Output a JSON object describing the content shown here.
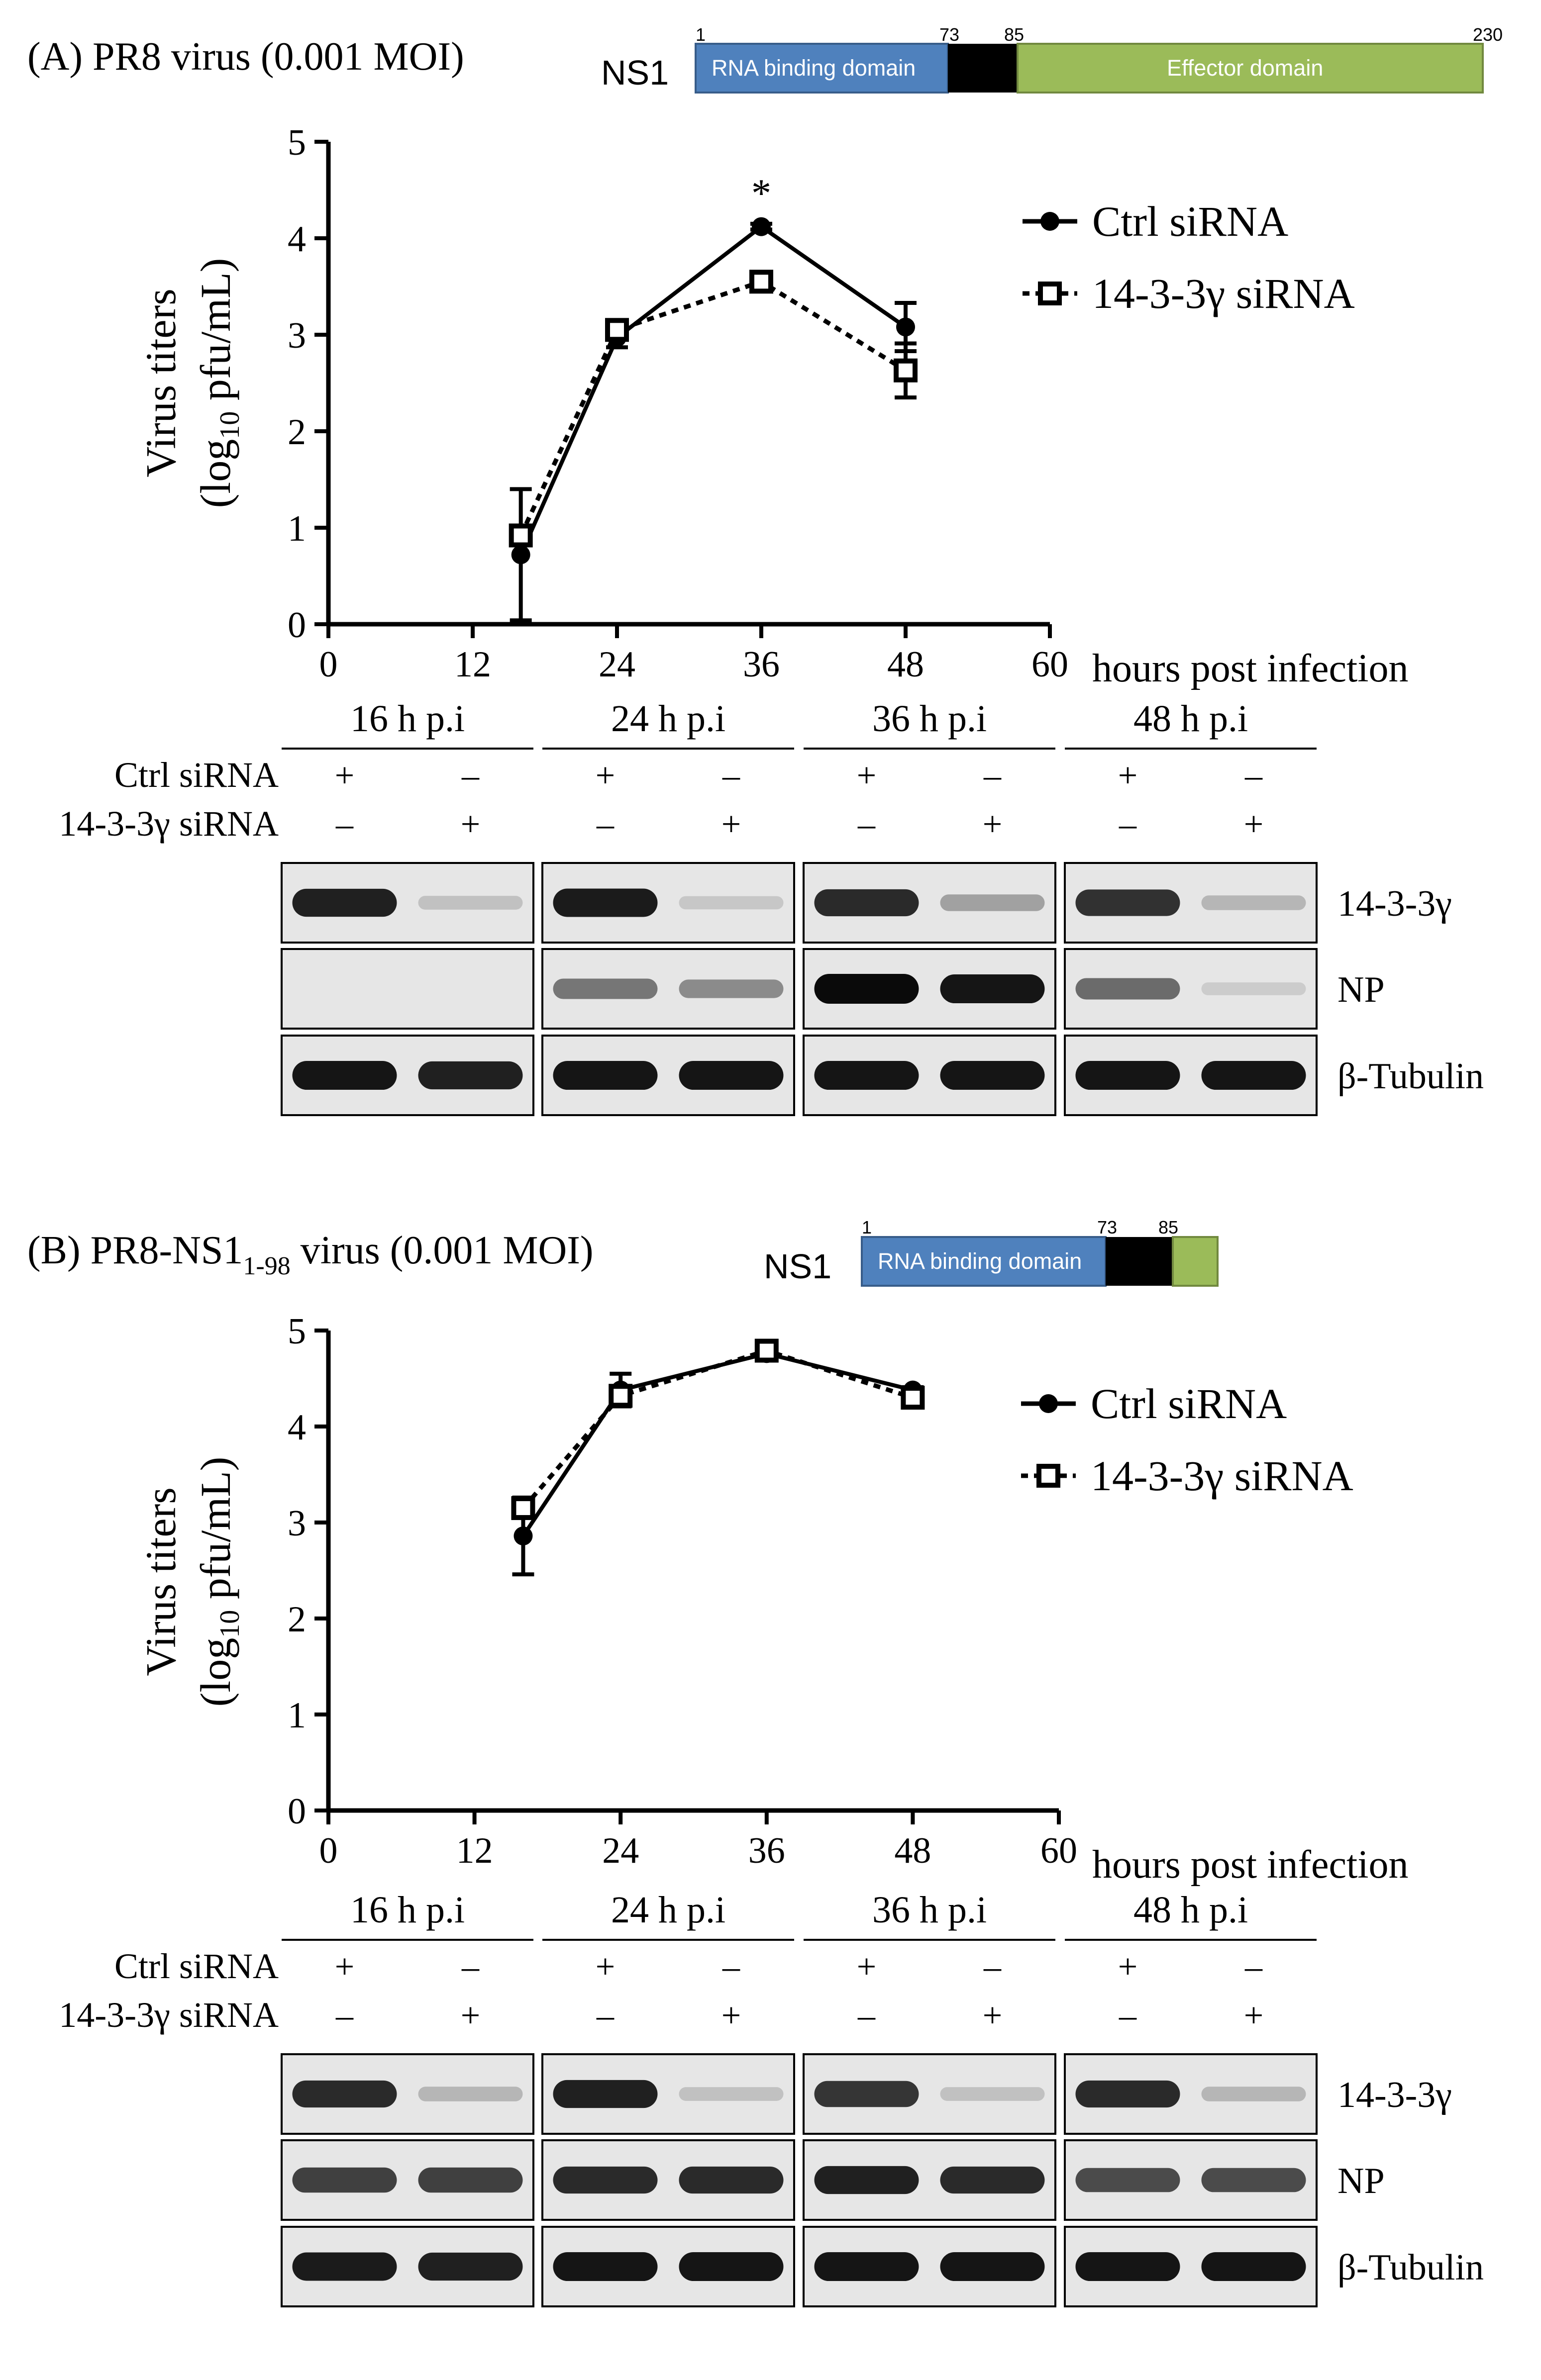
{
  "colors": {
    "rna_domain": "#4f81bd",
    "linker": "#000000",
    "effector_domain": "#9bbb59",
    "axis": "#000000"
  },
  "common": {
    "x_unit_label": "hours post infection",
    "y_label_line1": "Virus titers",
    "y_label_log": "(log",
    "y_label_sub": "10",
    "y_label_rest": " pfu/mL)",
    "lane_labels": [
      "16 h p.i",
      "24 h p.i",
      "36 h p.i",
      "48 h p.i"
    ],
    "sirna_rows": [
      "Ctrl siRNA",
      "14-3-3γ siRNA"
    ],
    "ctrl_marks": [
      "+",
      "–",
      "+",
      "–",
      "+",
      "–",
      "+",
      "–"
    ],
    "kd_marks": [
      "–",
      "+",
      "–",
      "+",
      "–",
      "+",
      "–",
      "+"
    ],
    "blot_labels": [
      "14-3-3γ",
      "NP",
      "β-Tubulin"
    ]
  },
  "panel_a": {
    "title": "(A) PR8 virus (0.001 MOI)",
    "ns1_label": "NS1",
    "ns1_positions": [
      "1",
      "73",
      "85",
      "230"
    ],
    "rna_domain_label": "RNA binding domain",
    "effector_label": "Effector domain",
    "star": "*"
  },
  "panel_b": {
    "title_pre": "(B) PR8-NS1",
    "title_sub": "1-98",
    "title_post": " virus (0.001 MOI)",
    "ns1_label": "NS1",
    "ns1_positions": [
      "1",
      "73",
      "85"
    ],
    "rna_domain_label": "RNA binding domain"
  },
  "chart_data": [
    {
      "type": "line",
      "panel": "A",
      "xlabel": "hours post infection",
      "ylabel": "Virus titers (log10 pfu/mL)",
      "xlim": [
        0,
        60
      ],
      "ylim": [
        0,
        5
      ],
      "xticks": [
        0,
        12,
        24,
        36,
        48,
        60
      ],
      "yticks": [
        0,
        1,
        2,
        3,
        4,
        5
      ],
      "legend_position": "top-right",
      "series": [
        {
          "name": "Ctrl siRNA",
          "style": "solid-filled-circle",
          "x": [
            16,
            24,
            36,
            48
          ],
          "y": [
            0.72,
            2.97,
            4.12,
            3.08
          ],
          "err": [
            0.68,
            0.1,
            0.03,
            0.25
          ]
        },
        {
          "name": "14-3-3γ siRNA",
          "style": "dotted-open-square",
          "x": [
            16,
            24,
            36,
            48
          ],
          "y": [
            0.92,
            3.05,
            3.55,
            2.63
          ],
          "err": [
            0.08,
            0.06,
            0.05,
            0.28
          ]
        }
      ],
      "annotations": [
        {
          "x": 36,
          "text": "*"
        }
      ]
    },
    {
      "type": "line",
      "panel": "B",
      "xlabel": "hours post infection",
      "ylabel": "Virus titers (log10 pfu/mL)",
      "xlim": [
        0,
        60
      ],
      "ylim": [
        0,
        5
      ],
      "xticks": [
        0,
        12,
        24,
        36,
        48,
        60
      ],
      "yticks": [
        0,
        1,
        2,
        3,
        4,
        5
      ],
      "legend_position": "top-right",
      "series": [
        {
          "name": "Ctrl siRNA",
          "style": "solid-filled-circle",
          "x": [
            16,
            24,
            36,
            48
          ],
          "y": [
            2.86,
            4.38,
            4.76,
            4.38
          ],
          "err": [
            0.4,
            0.17,
            0.03,
            0.03
          ]
        },
        {
          "name": "14-3-3γ siRNA",
          "style": "dotted-open-square",
          "x": [
            16,
            24,
            36,
            48
          ],
          "y": [
            3.15,
            4.32,
            4.79,
            4.3
          ],
          "err": [
            0.04,
            0.1,
            0.03,
            0.03
          ]
        }
      ]
    }
  ],
  "blots": {
    "A": [
      {
        "name": "14-3-3γ",
        "intensity": [
          0.9,
          0.15,
          0.92,
          0.12,
          0.85,
          0.3,
          0.82,
          0.2
        ]
      },
      {
        "name": "NP",
        "intensity": [
          0.0,
          0.0,
          0.5,
          0.4,
          1.0,
          0.95,
          0.55,
          0.1
        ]
      },
      {
        "name": "β-Tubulin",
        "intensity": [
          0.95,
          0.9,
          0.95,
          0.95,
          0.95,
          0.95,
          0.95,
          0.95
        ]
      }
    ],
    "B": [
      {
        "name": "14-3-3γ",
        "intensity": [
          0.85,
          0.2,
          0.9,
          0.15,
          0.8,
          0.15,
          0.85,
          0.2
        ]
      },
      {
        "name": "NP",
        "intensity": [
          0.75,
          0.75,
          0.85,
          0.85,
          0.9,
          0.85,
          0.7,
          0.7
        ]
      },
      {
        "name": "β-Tubulin",
        "intensity": [
          0.92,
          0.9,
          0.95,
          0.95,
          0.95,
          0.95,
          0.95,
          0.95
        ]
      }
    ]
  }
}
